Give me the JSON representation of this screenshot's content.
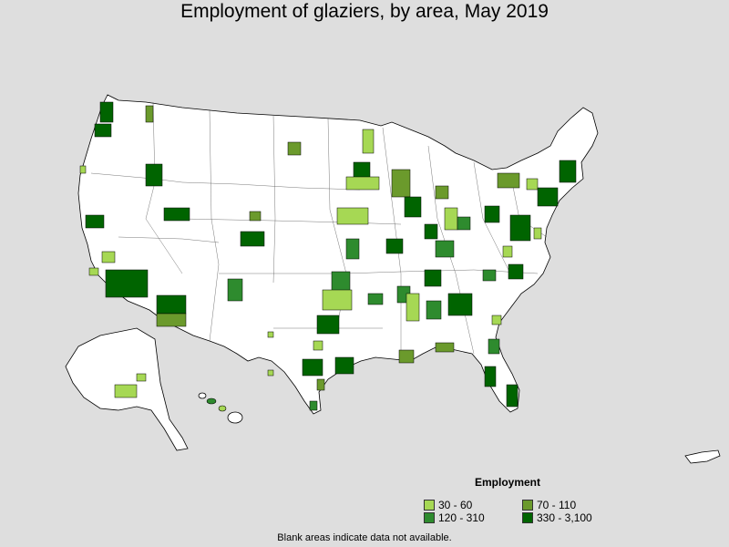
{
  "title": "Employment of glaziers, by area, May 2019",
  "legend": {
    "title": "Employment",
    "items": [
      {
        "label": "30 - 60",
        "color": "#a6d854"
      },
      {
        "label": "70 - 110",
        "color": "#6b9a2c"
      },
      {
        "label": "120 - 310",
        "color": "#2e8b2e"
      },
      {
        "label": "330 - 3,100",
        "color": "#006400"
      }
    ]
  },
  "footnote": "Blank areas indicate data not available.",
  "colors": {
    "background": "#dedede",
    "state_fill": "#ffffff",
    "border": "#000000"
  }
}
